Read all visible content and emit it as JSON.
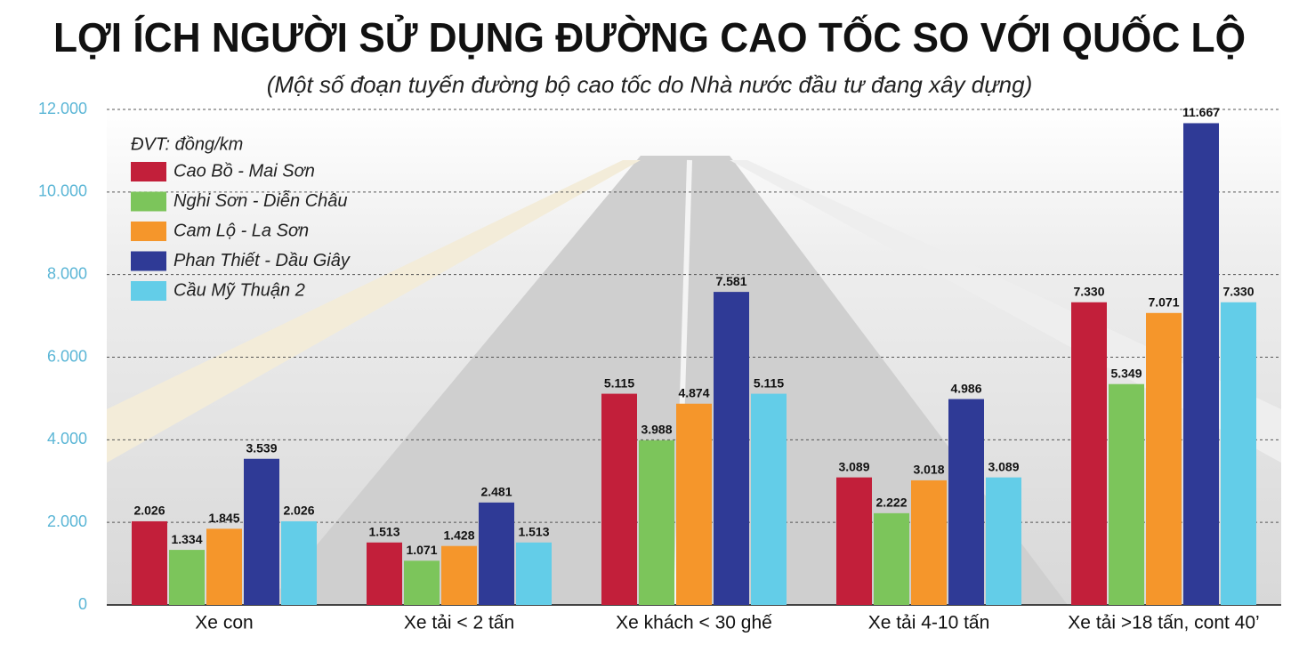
{
  "chart_data": {
    "type": "bar",
    "title": "LỢI ÍCH NGƯỜI SỬ DỤNG ĐƯỜNG CAO TỐC SO VỚI QUỐC LỘ",
    "subtitle": "(Một số đoạn tuyến đường bộ cao tốc do Nhà nước đầu tư đang xây dựng)",
    "legend_title": "ĐVT: đồng/km",
    "categories": [
      "Xe con",
      "Xe tải < 2 tấn",
      "Xe khách < 30 ghế",
      "Xe tải 4-10 tấn",
      "Xe tải >18 tấn, cont 40’"
    ],
    "series": [
      {
        "name": "Cao Bồ - Mai Sơn",
        "color": "#c21f3a",
        "values": [
          2026,
          1513,
          5115,
          3089,
          7330
        ],
        "value_labels": [
          "2.026",
          "1.513",
          "5.115",
          "3.089",
          "7.330"
        ]
      },
      {
        "name": "Nghi Sơn - Diễn Châu",
        "color": "#7cc55b",
        "values": [
          1334,
          1071,
          3988,
          2222,
          5349
        ],
        "value_labels": [
          "1.334",
          "1.071",
          "3.988",
          "2.222",
          "5.349"
        ]
      },
      {
        "name": "Cam Lộ - La Sơn",
        "color": "#f5962b",
        "values": [
          1845,
          1428,
          4874,
          3018,
          7071
        ],
        "value_labels": [
          "1.845",
          "1.428",
          "4.874",
          "3.018",
          "7.071"
        ]
      },
      {
        "name": "Phan Thiết - Dầu Giây",
        "color": "#2f3a96",
        "values": [
          3539,
          2481,
          7581,
          4986,
          11667
        ],
        "value_labels": [
          "3.539",
          "2.481",
          "7.581",
          "4.986",
          "11.667"
        ]
      },
      {
        "name": "Cầu Mỹ Thuận 2",
        "color": "#63cde8",
        "values": [
          2026,
          1513,
          5115,
          3089,
          7330
        ],
        "value_labels": [
          "2.026",
          "1.513",
          "5.115",
          "3.089",
          "7.330"
        ]
      }
    ],
    "ylim": [
      0,
      12000
    ],
    "yticks": [
      0,
      {
        "value": 2000,
        "label": "2.000"
      },
      {
        "value": 4000,
        "label": "4.000"
      },
      {
        "value": 6000,
        "label": "6.000"
      },
      {
        "value": 8000,
        "label": "8.000"
      },
      {
        "value": 10000,
        "label": "10.000"
      },
      {
        "value": 12000,
        "label": "12.000"
      }
    ],
    "grid": true
  }
}
